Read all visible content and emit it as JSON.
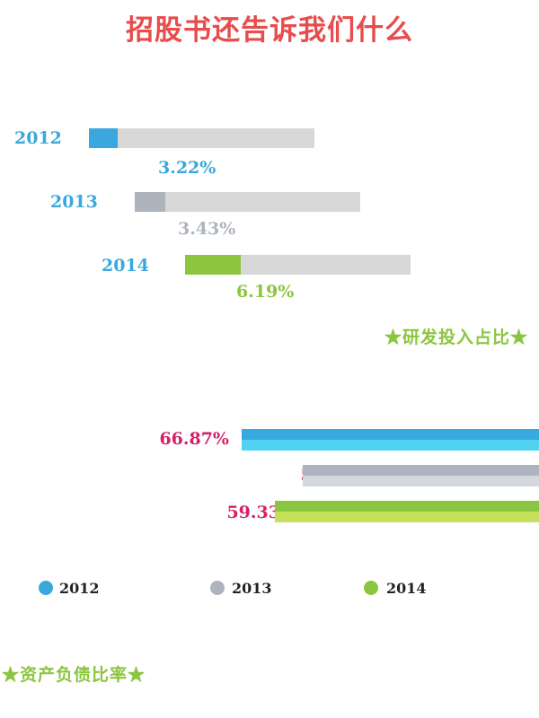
{
  "title": "招股书还告诉我们什么",
  "colors": {
    "2012": "#3aa7dd",
    "2013": "#aeb4be",
    "2014": "#8cc53f",
    "title": "#e84c4c",
    "value_pink": "#d6206a"
  },
  "chart_data": [
    {
      "type": "bar",
      "title": "★研发投入占比★",
      "categories": [
        "2012",
        "2013",
        "2014"
      ],
      "values": [
        3.22,
        3.43,
        6.19
      ],
      "value_labels": [
        "3.22%",
        "3.43%",
        "6.19%"
      ],
      "unit": "%"
    },
    {
      "type": "bar",
      "title": "★资产负债比率★",
      "categories": [
        "2012",
        "2013",
        "2014"
      ],
      "values": [
        66.87,
        53.11,
        59.33
      ],
      "value_labels": [
        "66.87%",
        "53.11%",
        "59.33%"
      ],
      "unit": "%"
    }
  ],
  "legend": [
    {
      "label": "2012",
      "color": "#3aa7dd"
    },
    {
      "label": "2013",
      "color": "#aeb4be"
    },
    {
      "label": "2014",
      "color": "#8cc53f"
    }
  ]
}
